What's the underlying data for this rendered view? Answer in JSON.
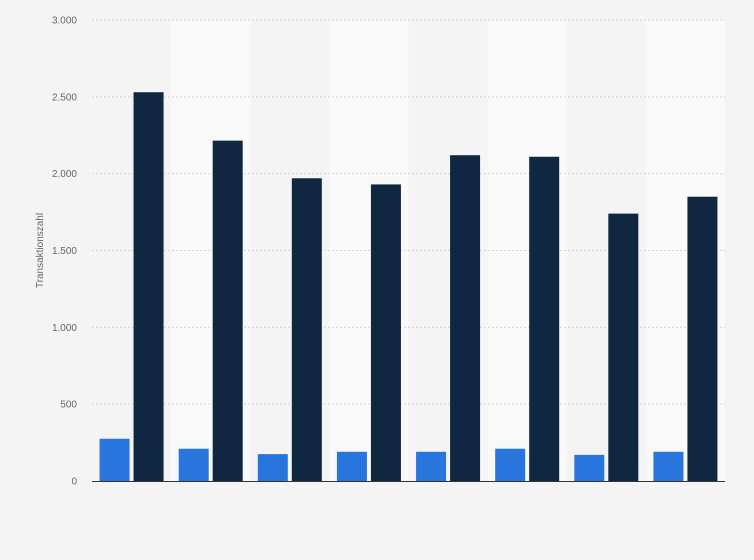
{
  "chart_data": {
    "type": "bar",
    "title": "",
    "xlabel": "",
    "ylabel": "Transaktionszahl",
    "ylim": [
      0,
      3000
    ],
    "yticks": [
      {
        "value": 0,
        "label": "0"
      },
      {
        "value": 500,
        "label": "500"
      },
      {
        "value": 1000,
        "label": "1.000"
      },
      {
        "value": 1500,
        "label": "1.500"
      },
      {
        "value": 2000,
        "label": "2.000"
      },
      {
        "value": 2500,
        "label": "2.500"
      },
      {
        "value": 3000,
        "label": "3.000"
      }
    ],
    "grid": true,
    "legend": "none",
    "categories": [
      "",
      "",
      "",
      "",
      "",
      "",
      "",
      ""
    ],
    "series": [
      {
        "color": "#2876dd",
        "values": [
          275,
          210,
          175,
          190,
          190,
          210,
          170,
          190
        ]
      },
      {
        "color": "#0f2740",
        "values": [
          2530,
          2215,
          1970,
          1930,
          2120,
          2110,
          1740,
          1850
        ]
      }
    ],
    "colors": {
      "background": "#f4f4f4",
      "band": "#f9f9f9",
      "grid": "#d6d6d6",
      "axis": "#333333"
    }
  }
}
